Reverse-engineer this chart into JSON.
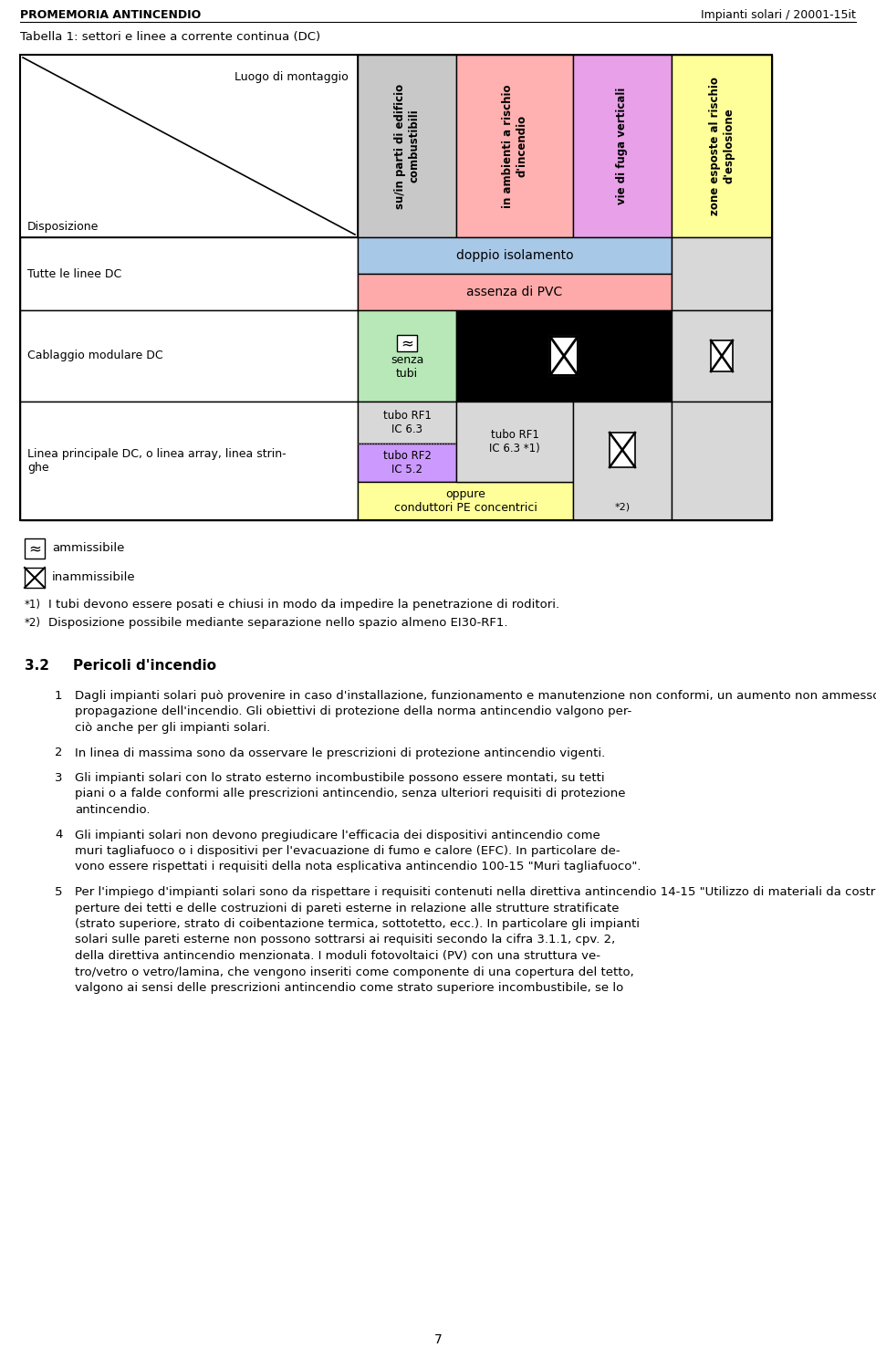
{
  "header_left": "PROMEMORIA ANTINCENDIO",
  "header_right": "Impianti solari / 20001-15it",
  "table_title": "Tabella 1: settori e linee a corrente continua (DC)",
  "col_headers": [
    "su/in parti di edificio\ncombustibili",
    "in ambienti a rischio\nd'incendio",
    "vie di fuga verticali",
    "zone esposte al rischio\nd'esplosione"
  ],
  "col_colors": [
    "#c8c8c8",
    "#ffb0b0",
    "#e8a0e8",
    "#ffff99"
  ],
  "legend_ammissibile": "ammissibile",
  "legend_inammissibile": "inammissibile",
  "note1": "I tubi devono essere posati e chiusi in modo da impedire la penetrazione di roditori.",
  "note2": "Disposizione possibile mediante separazione nello spazio almeno EI30-RF1.",
  "text_doppio_isolamento": "doppio isolamento",
  "text_assenza_pvc": "assenza di PVC",
  "text_senza_tubi": "senza\ntubi",
  "text_tubo_rf1_ic63": "tubo RF1\nIC 6.3",
  "text_tubo_rf2_ic52": "tubo RF2\nIC 5.2",
  "text_tubo_rf1_ic63_note": "tubo RF1\nIC 6.3 *1)",
  "text_oppure": "oppure\nconduttori PE concentrici",
  "text_note2": "*2)",
  "color_doppio_iso": "#a8c8e8",
  "color_assenza_pvc": "#ffaaaa",
  "color_senza_tubi": "#b8e8b8",
  "color_black": "#000000",
  "color_gray_light": "#d8d8d8",
  "color_purple": "#cc99ff",
  "color_yellow": "#ffff99",
  "color_white": "#ffffff",
  "color_gray_col4": "#d8d8d8",
  "section_num": "3.2",
  "section_title": "Pericoli d'incendio",
  "paragraphs": [
    {
      "num": "1",
      "lines": [
        "Dagli impianti solari può provenire in caso d'installazione, funzionamento e manutenzione non conformi, un aumento non ammesso del pericolo inerente alla formazione ed alla",
        "propagazione dell'incendio. Gli obiettivi di protezione della norma antincendio valgono per-",
        "ciò anche per gli impianti solari."
      ]
    },
    {
      "num": "2",
      "lines": [
        "In linea di massima sono da osservare le prescrizioni di protezione antincendio vigenti."
      ]
    },
    {
      "num": "3",
      "lines": [
        "Gli impianti solari con lo strato esterno incombustibile possono essere montati, su tetti",
        "piani o a falde conformi alle prescrizioni antincendio, senza ulteriori requisiti di protezione",
        "antincendio."
      ]
    },
    {
      "num": "4",
      "lines": [
        "Gli impianti solari non devono pregiudicare l'efficacia dei dispositivi antincendio come",
        "muri tagliafuoco o i dispositivi per l'evacuazione di fumo e calore (EFC). In particolare de-",
        "vono essere rispettati i requisiti della nota esplicativa antincendio 100-15 \"Muri tagliafuoco\"."
      ]
    },
    {
      "num": "5",
      "lines": [
        "Per l'impiego d'impianti solari sono da rispettare i requisiti contenuti nella direttiva antincendio 14-15 \"Utilizzo di materiali da costruzione\" inerenti alla reazione al fuoco delle co-",
        "perture dei tetti e delle costruzioni di pareti esterne in relazione alle strutture stratificate",
        "(strato superiore, strato di coibentazione termica, sottotetto, ecc.). In particolare gli impianti",
        "solari sulle pareti esterne non possono sottrarsi ai requisiti secondo la cifra 3.1.1, cpv. 2,",
        "della direttiva antincendio menzionata. I moduli fotovoltaici (PV) con una struttura ve-",
        "tro/vetro o vetro/lamina, che vengono inseriti come componente di una copertura del tetto,",
        "valgono ai sensi delle prescrizioni antincendio come strato superiore incombustibile, se lo"
      ]
    }
  ]
}
